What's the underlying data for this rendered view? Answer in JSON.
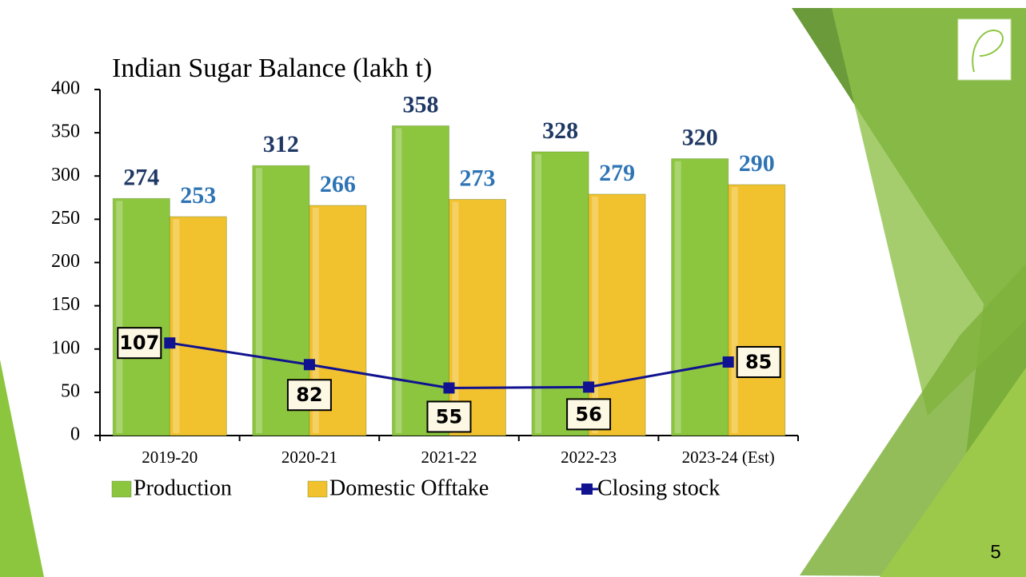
{
  "chart_data": {
    "type": "bar",
    "title": "Indian Sugar Balance (lakh t)",
    "categories": [
      "2019-20",
      "2020-21",
      "2021-22",
      "2022-23",
      "2023-24 (Est)"
    ],
    "series": [
      {
        "name": "Production",
        "color": "#8cc63f",
        "values": [
          274,
          312,
          358,
          328,
          320
        ]
      },
      {
        "name": "Domestic Offtake",
        "color": "#f2c12e",
        "values": [
          253,
          266,
          273,
          279,
          290
        ]
      },
      {
        "name": "Closing  stock",
        "type": "line",
        "color": "#10128f",
        "values": [
          107,
          82,
          55,
          56,
          85
        ]
      }
    ],
    "ylim": [
      0,
      400
    ],
    "yticks": [
      0,
      50,
      100,
      150,
      200,
      250,
      300,
      350,
      400
    ],
    "grid": false,
    "legend": "bottom"
  },
  "slide": {
    "page_number": 5
  }
}
